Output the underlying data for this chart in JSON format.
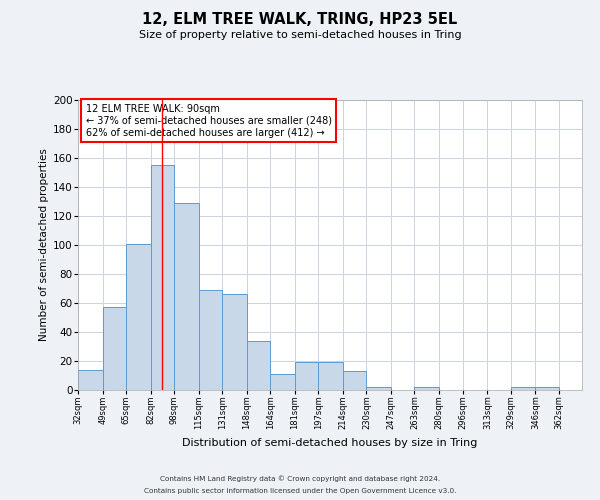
{
  "title": "12, ELM TREE WALK, TRING, HP23 5EL",
  "subtitle": "Size of property relative to semi-detached houses in Tring",
  "xlabel": "Distribution of semi-detached houses by size in Tring",
  "ylabel": "Number of semi-detached properties",
  "bar_left_edges": [
    32,
    49,
    65,
    82,
    98,
    115,
    131,
    148,
    164,
    181,
    197,
    214,
    230,
    247,
    263,
    280,
    296,
    313,
    329,
    346
  ],
  "bar_widths": [
    17,
    16,
    17,
    16,
    17,
    16,
    17,
    16,
    17,
    16,
    17,
    16,
    17,
    16,
    17,
    16,
    17,
    16,
    17,
    16
  ],
  "bar_heights": [
    14,
    57,
    101,
    155,
    129,
    69,
    66,
    34,
    11,
    19,
    19,
    13,
    2,
    0,
    2,
    0,
    0,
    0,
    2,
    2
  ],
  "bar_color": "#c8d8e8",
  "bar_edge_color": "#5b9bd5",
  "ylim": [
    0,
    200
  ],
  "yticks": [
    0,
    20,
    40,
    60,
    80,
    100,
    120,
    140,
    160,
    180,
    200
  ],
  "xtick_labels": [
    "32sqm",
    "49sqm",
    "65sqm",
    "82sqm",
    "98sqm",
    "115sqm",
    "131sqm",
    "148sqm",
    "164sqm",
    "181sqm",
    "197sqm",
    "214sqm",
    "230sqm",
    "247sqm",
    "263sqm",
    "280sqm",
    "296sqm",
    "313sqm",
    "329sqm",
    "346sqm",
    "362sqm"
  ],
  "red_line_x": 90,
  "annotation_title": "12 ELM TREE WALK: 90sqm",
  "annotation_line1": "← 37% of semi-detached houses are smaller (248)",
  "annotation_line2": "62% of semi-detached houses are larger (412) →",
  "footer1": "Contains HM Land Registry data © Crown copyright and database right 2024.",
  "footer2": "Contains public sector information licensed under the Open Government Licence v3.0.",
  "background_color": "#eef2f7",
  "plot_bg_color": "#ffffff",
  "grid_color": "#c8d4e0"
}
